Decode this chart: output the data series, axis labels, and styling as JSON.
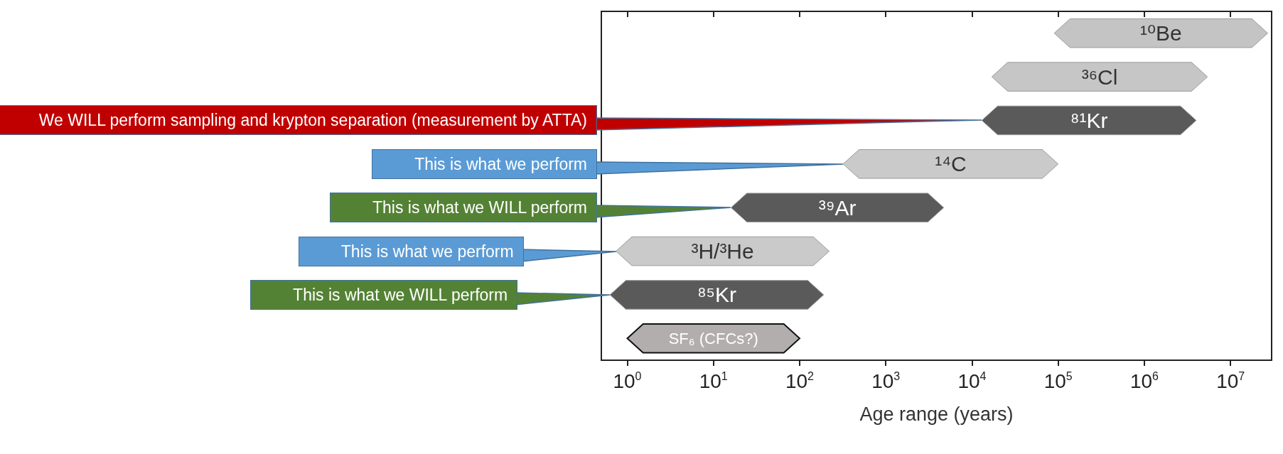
{
  "chart_data": {
    "type": "bar",
    "orientation": "horizontal",
    "log": "x",
    "xlabel": "Age range (years)",
    "categories": [
      "¹⁰Be",
      "³⁶Cl",
      "⁸¹Kr",
      "¹⁴C",
      "³⁹Ar",
      "³H/³He",
      "⁸⁵Kr",
      "SF₆ (CFCs?)"
    ],
    "base": [
      90000,
      17000,
      13000,
      320,
      16,
      0.74,
      0.63,
      1
    ],
    "values": [
      26910000,
      5383000,
      3987000,
      99680,
      4684,
      219.26,
      189.37,
      99
    ],
    "colors": [
      "#c4c4c4",
      "#c6c6c6",
      "#5a5a5a",
      "#cacaca",
      "#5a5a5a",
      "#cacaca",
      "#5a5a5a",
      "#b3aeae"
    ],
    "xlim": [
      0.5,
      30000000
    ],
    "xticks": [
      {
        "value": 1,
        "label": "10$^{0}$"
      },
      {
        "value": 10,
        "label": "10$^{1}$"
      },
      {
        "value": 100,
        "label": "10$^{2}$"
      },
      {
        "value": 1000,
        "label": "10$^{3}$"
      },
      {
        "value": 10000,
        "label": "10$^{4}$"
      },
      {
        "value": 100000,
        "label": "10$^{5}$"
      },
      {
        "value": 1000000,
        "label": "10$^{6}$"
      },
      {
        "value": 10000000,
        "label": "10$^{7}$"
      }
    ],
    "tick_labels": "x",
    "grid": false,
    "annotations": [
      {
        "text": "We WILL perform sampling and krypton separation (measurement by ATTA)",
        "x": 13000,
        "y": "⁸¹Kr"
      },
      {
        "text": "This is what we perform",
        "x": 320,
        "y": "¹⁴C"
      },
      {
        "text": "This is what we WILL perform",
        "x": 16,
        "y": "³⁹Ar"
      },
      {
        "text": "This is what we perform",
        "x": 0.74,
        "y": "³H/³He"
      },
      {
        "text": "This is what we WILL perform",
        "x": 0.63,
        "y": "⁸⁵Kr"
      }
    ]
  }
}
